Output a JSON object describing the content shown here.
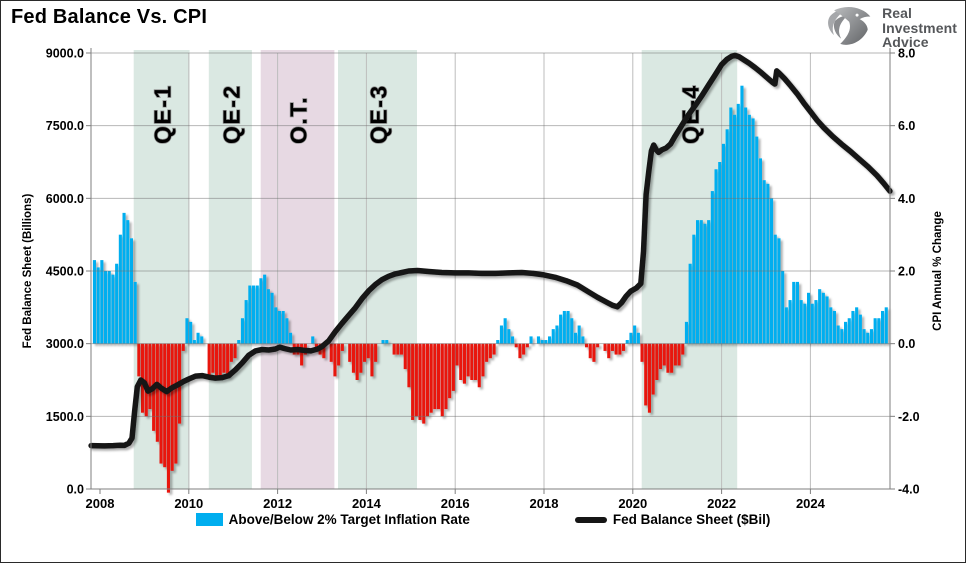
{
  "logo": {
    "lines": [
      "Real",
      "Investment",
      "Advice"
    ]
  },
  "chart_data": {
    "type": "combo-bar-line",
    "title": "Fed Balance Vs. CPI",
    "left_axis": {
      "label": "Fed Balance Sheet (Billions)",
      "min": 0,
      "max": 9000,
      "tick_labels": [
        "0.0",
        "1500.0",
        "3000.0",
        "4500.0",
        "6000.0",
        "7500.0",
        "9000.0"
      ]
    },
    "right_axis": {
      "label": "CPI Annual % Change",
      "min": -4,
      "max": 8,
      "tick_labels": [
        "-4.0",
        "-2.0",
        "0.0",
        "2.0",
        "4.0",
        "6.0",
        "8.0"
      ]
    },
    "x_axis": {
      "tick_labels": [
        "2008",
        "2010",
        "2012",
        "2014",
        "2016",
        "2018",
        "2020",
        "2022",
        "2024"
      ],
      "range_years": [
        2007.8,
        2025.8
      ],
      "grid": true
    },
    "bands": [
      {
        "label": "QE-1",
        "from": 2008.76,
        "to": 2010.02,
        "color": "#DAE8E2"
      },
      {
        "label": "QE-2",
        "from": 2010.45,
        "to": 2011.42,
        "color": "#DAE8E2"
      },
      {
        "label": "O.T.",
        "from": 2011.62,
        "to": 2013.28,
        "color": "#E7D9E3"
      },
      {
        "label": "QE-3",
        "from": 2013.36,
        "to": 2015.14,
        "color": "#DAE8E2"
      },
      {
        "label": "QE-4",
        "from": 2020.2,
        "to": 2022.35,
        "color": "#DAE8E2"
      }
    ],
    "bar_series": {
      "name": "Above/Below 2% Target Inflation Rate",
      "axis": "right",
      "start": "2007-11",
      "interval": "monthly",
      "pos_color": "#00AEEF",
      "neg_color": "#E8150D",
      "values": [
        2.3,
        2.1,
        2.3,
        2.0,
        2.0,
        1.9,
        2.2,
        3.0,
        3.6,
        3.4,
        2.9,
        1.7,
        -0.9,
        -1.9,
        -2.0,
        -1.8,
        -2.4,
        -2.7,
        -3.3,
        -3.4,
        -4.1,
        -3.5,
        -3.3,
        -2.2,
        -0.2,
        0.7,
        0.6,
        0.1,
        0.3,
        0.2,
        0.0,
        -0.9,
        -0.8,
        -0.9,
        -0.9,
        -0.8,
        -0.9,
        -0.5,
        -0.4,
        0.1,
        0.7,
        1.2,
        1.6,
        1.6,
        1.6,
        1.8,
        1.9,
        1.5,
        1.4,
        1.0,
        0.9,
        0.9,
        0.7,
        0.3,
        -0.3,
        -0.3,
        -0.6,
        -0.3,
        0.0,
        0.2,
        -0.2,
        -0.3,
        -0.4,
        0.0,
        -0.5,
        -0.9,
        -0.6,
        -0.2,
        0.0,
        -0.5,
        -0.8,
        -1.0,
        -0.8,
        -0.5,
        -0.4,
        -0.9,
        -0.5,
        0.0,
        0.1,
        0.1,
        0.0,
        -0.3,
        -0.3,
        -0.3,
        -0.7,
        -1.2,
        -2.1,
        -2.0,
        -2.1,
        -2.2,
        -2.0,
        -1.9,
        -1.8,
        -1.8,
        -2.0,
        -1.8,
        -1.5,
        -1.3,
        -0.6,
        -1.0,
        -1.1,
        -0.9,
        -1.0,
        -1.0,
        -1.2,
        -0.9,
        -0.5,
        -0.4,
        -0.3,
        0.1,
        0.5,
        0.7,
        0.4,
        0.2,
        -0.1,
        -0.4,
        -0.3,
        -0.1,
        0.2,
        0.0,
        0.2,
        0.1,
        0.1,
        0.2,
        0.4,
        0.5,
        0.8,
        0.9,
        0.9,
        0.7,
        0.3,
        0.5,
        0.2,
        -0.1,
        -0.4,
        -0.5,
        -0.1,
        0.0,
        -0.2,
        -0.4,
        -0.2,
        -0.3,
        -0.3,
        -0.2,
        0.1,
        0.3,
        0.5,
        0.3,
        -0.5,
        -1.7,
        -1.9,
        -1.4,
        -1.0,
        -0.7,
        -0.6,
        -0.8,
        -0.8,
        -0.6,
        -0.6,
        -0.3,
        0.6,
        2.2,
        3.0,
        3.4,
        3.4,
        3.3,
        3.4,
        4.2,
        4.8,
        5.0,
        5.5,
        5.9,
        6.5,
        6.3,
        6.6,
        7.1,
        6.5,
        6.3,
        6.2,
        5.7,
        5.1,
        4.5,
        4.4,
        4.0,
        3.0,
        2.9,
        2.0,
        1.0,
        1.2,
        1.7,
        1.7,
        1.2,
        1.1,
        1.4,
        1.1,
        1.2,
        1.5,
        1.4,
        1.3,
        1.0,
        0.9,
        0.5,
        0.4,
        0.6,
        0.7,
        0.9,
        1.0,
        0.8,
        0.4,
        0.3,
        0.4,
        0.7,
        0.7,
        0.9,
        1.0
      ]
    },
    "line_series": {
      "name": "Fed Balance Sheet ($Bil)",
      "axis": "left",
      "color": "#151515",
      "points": [
        [
          2007.8,
          895
        ],
        [
          2008.1,
          890
        ],
        [
          2008.3,
          895
        ],
        [
          2008.45,
          905
        ],
        [
          2008.55,
          900
        ],
        [
          2008.65,
          945
        ],
        [
          2008.72,
          1050
        ],
        [
          2008.78,
          1600
        ],
        [
          2008.84,
          2110
        ],
        [
          2008.92,
          2250
        ],
        [
          2009.0,
          2190
        ],
        [
          2009.08,
          2020
        ],
        [
          2009.18,
          2070
        ],
        [
          2009.28,
          2160
        ],
        [
          2009.38,
          2080
        ],
        [
          2009.5,
          2010
        ],
        [
          2009.62,
          2090
        ],
        [
          2009.75,
          2150
        ],
        [
          2009.88,
          2220
        ],
        [
          2010.0,
          2270
        ],
        [
          2010.15,
          2330
        ],
        [
          2010.3,
          2340
        ],
        [
          2010.45,
          2310
        ],
        [
          2010.6,
          2290
        ],
        [
          2010.75,
          2300
        ],
        [
          2010.9,
          2340
        ],
        [
          2011.05,
          2460
        ],
        [
          2011.2,
          2600
        ],
        [
          2011.35,
          2760
        ],
        [
          2011.5,
          2850
        ],
        [
          2011.65,
          2880
        ],
        [
          2011.8,
          2870
        ],
        [
          2011.95,
          2890
        ],
        [
          2012.05,
          2930
        ],
        [
          2012.15,
          2900
        ],
        [
          2012.3,
          2870
        ],
        [
          2012.45,
          2880
        ],
        [
          2012.6,
          2860
        ],
        [
          2012.75,
          2850
        ],
        [
          2012.9,
          2890
        ],
        [
          2013.0,
          2940
        ],
        [
          2013.15,
          3060
        ],
        [
          2013.3,
          3250
        ],
        [
          2013.45,
          3420
        ],
        [
          2013.6,
          3580
        ],
        [
          2013.75,
          3740
        ],
        [
          2013.9,
          3930
        ],
        [
          2014.05,
          4090
        ],
        [
          2014.2,
          4220
        ],
        [
          2014.35,
          4320
        ],
        [
          2014.5,
          4390
        ],
        [
          2014.65,
          4440
        ],
        [
          2014.8,
          4470
        ],
        [
          2014.95,
          4500
        ],
        [
          2015.15,
          4510
        ],
        [
          2015.4,
          4490
        ],
        [
          2015.7,
          4470
        ],
        [
          2016.0,
          4460
        ],
        [
          2016.3,
          4460
        ],
        [
          2016.6,
          4450
        ],
        [
          2016.9,
          4450
        ],
        [
          2017.2,
          4460
        ],
        [
          2017.5,
          4470
        ],
        [
          2017.75,
          4450
        ],
        [
          2018.0,
          4420
        ],
        [
          2018.25,
          4370
        ],
        [
          2018.5,
          4300
        ],
        [
          2018.75,
          4210
        ],
        [
          2019.0,
          4070
        ],
        [
          2019.2,
          3960
        ],
        [
          2019.4,
          3860
        ],
        [
          2019.55,
          3790
        ],
        [
          2019.65,
          3760
        ],
        [
          2019.75,
          3850
        ],
        [
          2019.85,
          3980
        ],
        [
          2019.95,
          4080
        ],
        [
          2020.08,
          4150
        ],
        [
          2020.18,
          4240
        ],
        [
          2020.24,
          4900
        ],
        [
          2020.3,
          6080
        ],
        [
          2020.36,
          6560
        ],
        [
          2020.42,
          6980
        ],
        [
          2020.47,
          7100
        ],
        [
          2020.53,
          7000
        ],
        [
          2020.58,
          6950
        ],
        [
          2020.65,
          7000
        ],
        [
          2020.75,
          7040
        ],
        [
          2020.85,
          7120
        ],
        [
          2020.95,
          7280
        ],
        [
          2021.1,
          7500
        ],
        [
          2021.25,
          7720
        ],
        [
          2021.4,
          7910
        ],
        [
          2021.55,
          8110
        ],
        [
          2021.7,
          8330
        ],
        [
          2021.85,
          8540
        ],
        [
          2022.0,
          8760
        ],
        [
          2022.12,
          8870
        ],
        [
          2022.22,
          8930
        ],
        [
          2022.3,
          8950
        ],
        [
          2022.4,
          8920
        ],
        [
          2022.5,
          8860
        ],
        [
          2022.62,
          8790
        ],
        [
          2022.75,
          8700
        ],
        [
          2022.9,
          8590
        ],
        [
          2023.05,
          8470
        ],
        [
          2023.15,
          8390
        ],
        [
          2023.2,
          8360
        ],
        [
          2023.24,
          8630
        ],
        [
          2023.3,
          8580
        ],
        [
          2023.42,
          8470
        ],
        [
          2023.55,
          8330
        ],
        [
          2023.7,
          8160
        ],
        [
          2023.85,
          7970
        ],
        [
          2024.0,
          7790
        ],
        [
          2024.15,
          7610
        ],
        [
          2024.3,
          7460
        ],
        [
          2024.5,
          7280
        ],
        [
          2024.7,
          7120
        ],
        [
          2024.9,
          6970
        ],
        [
          2025.1,
          6810
        ],
        [
          2025.3,
          6650
        ],
        [
          2025.5,
          6470
        ],
        [
          2025.65,
          6310
        ],
        [
          2025.79,
          6150
        ]
      ]
    },
    "legend_position": "bottom"
  }
}
